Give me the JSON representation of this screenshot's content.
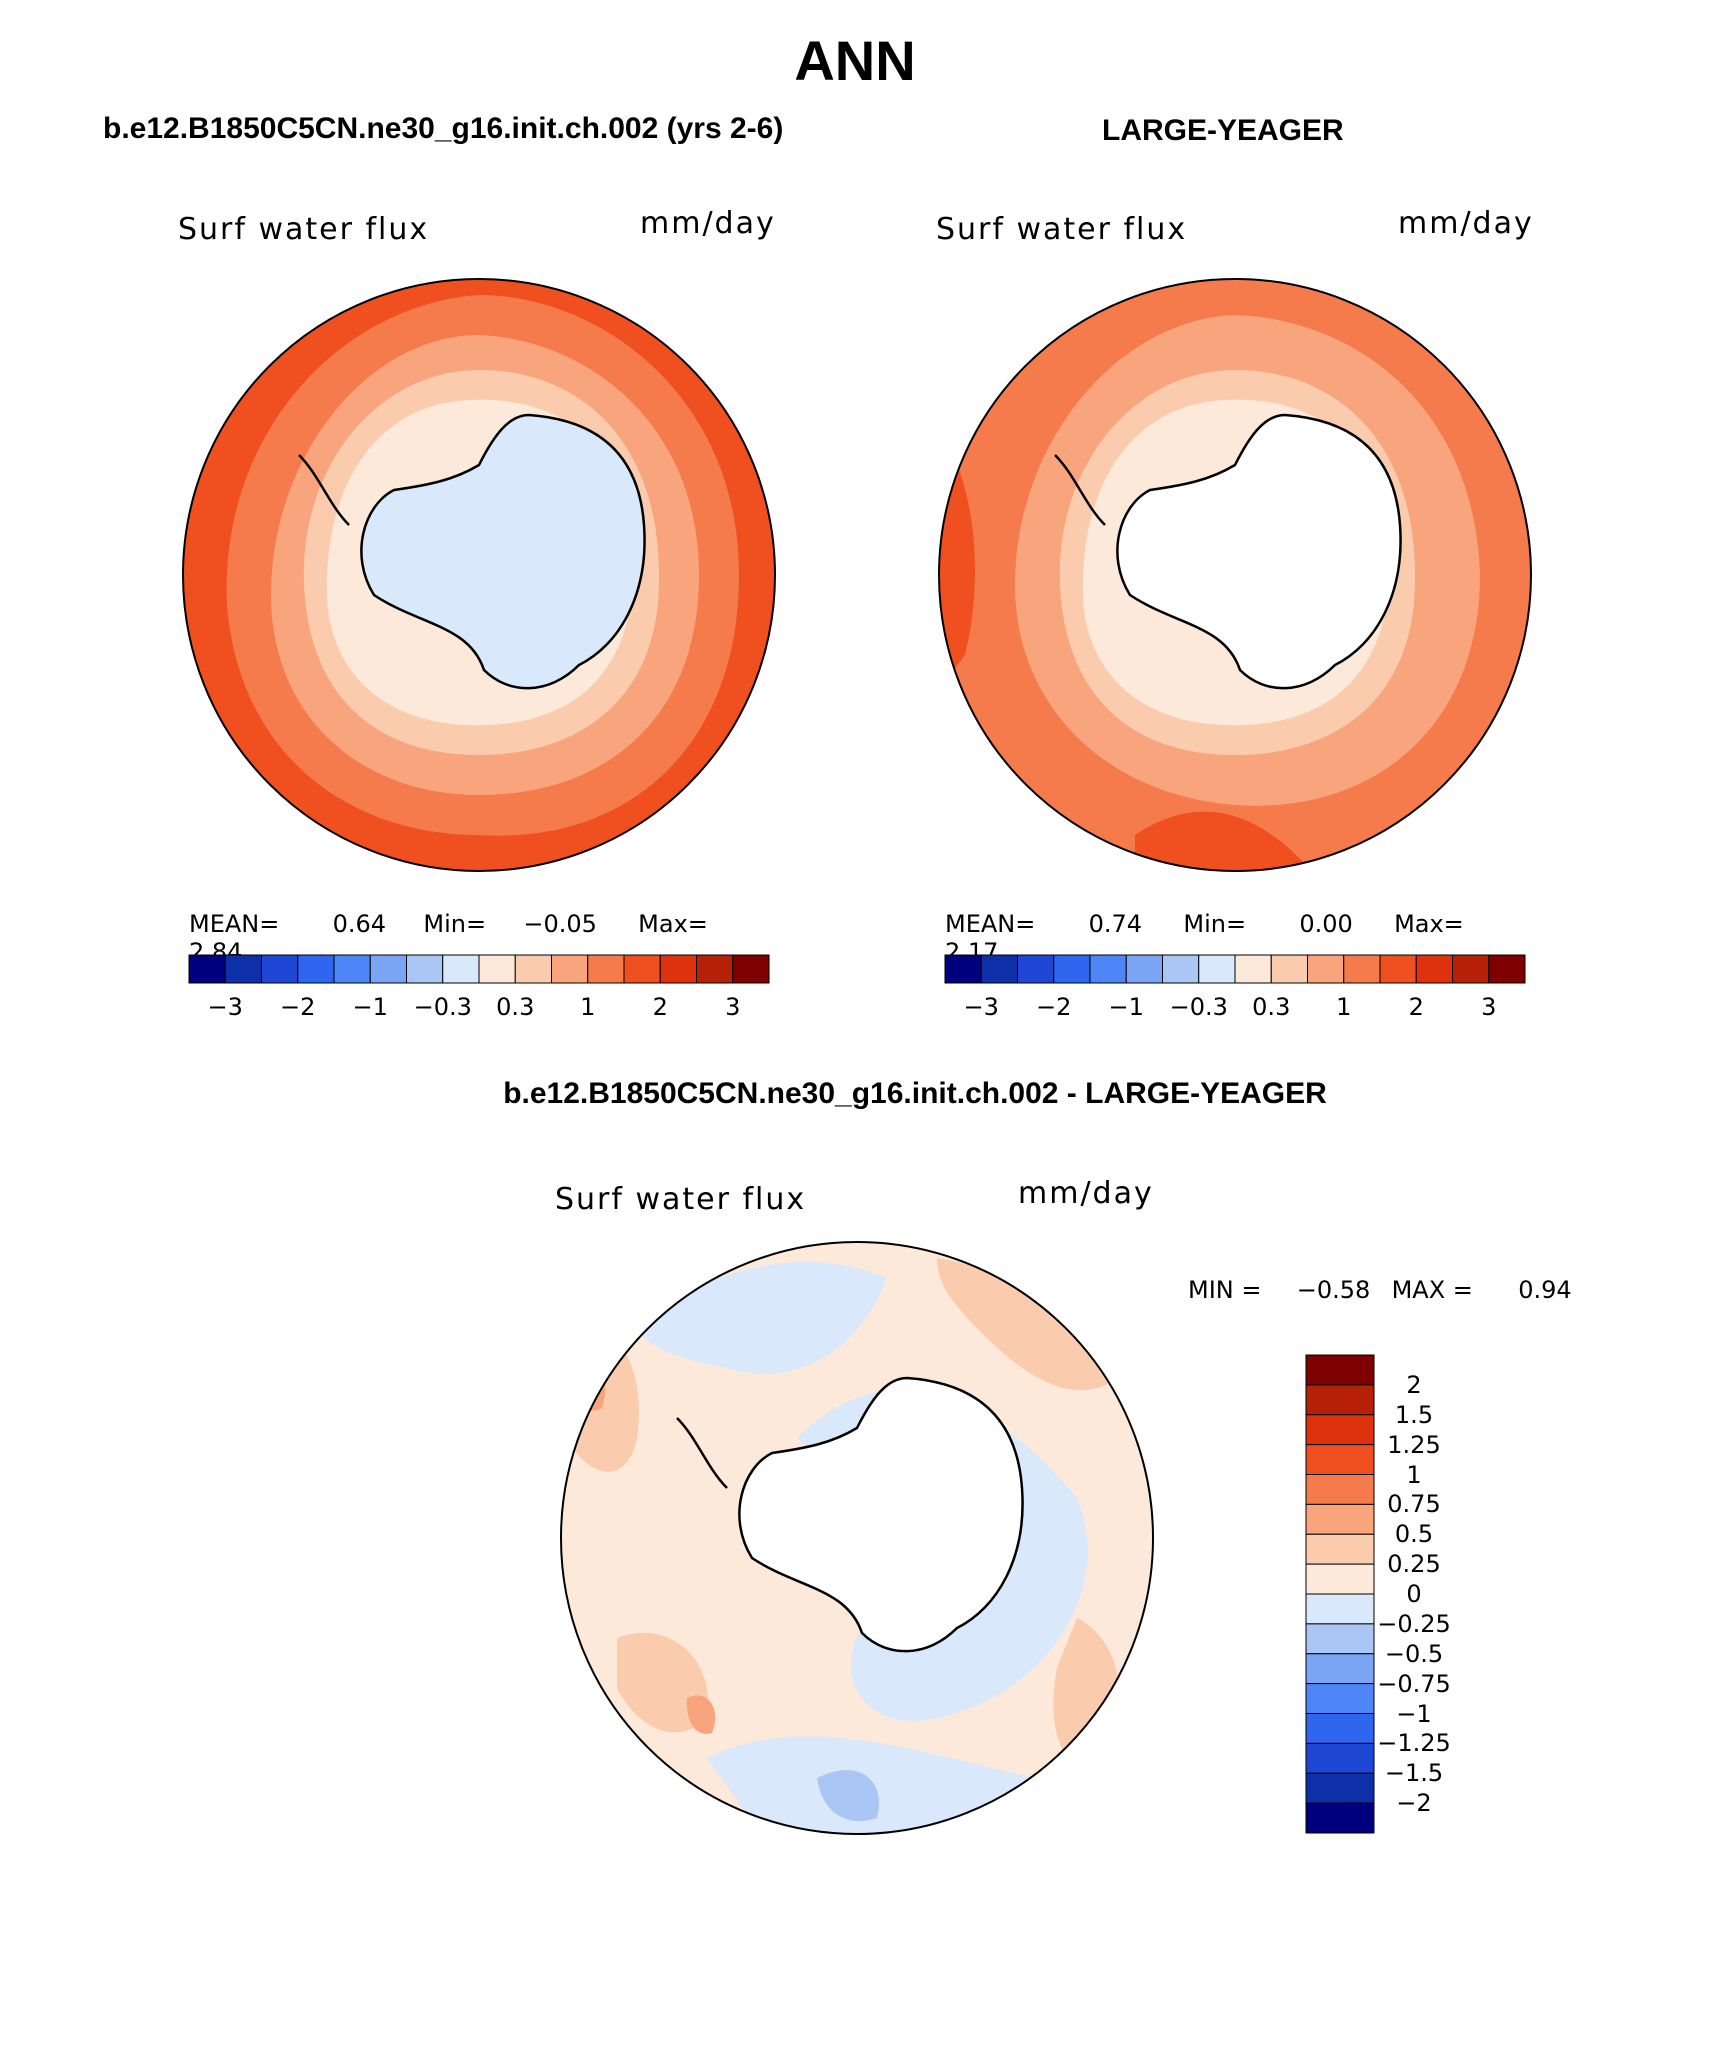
{
  "title": "ANN",
  "panels": [
    {
      "case_title": "b.e12.B1850C5CN.ne30_g16.init.ch.002 (yrs 2-6)",
      "variable": "Surf water flux",
      "units": "mm/day",
      "stats": {
        "mean_label": "MEAN=",
        "mean": "0.64",
        "min_label": "Min=",
        "min": "−0.05",
        "max_label": "Max=",
        "max": "2.84"
      }
    },
    {
      "case_title": "LARGE-YEAGER",
      "variable": "Surf water flux",
      "units": "mm/day",
      "stats": {
        "mean_label": "MEAN=",
        "mean": "0.74",
        "min_label": "Min=",
        "min": "0.00",
        "max_label": "Max=",
        "max": "2.17"
      }
    }
  ],
  "abs_colorbar": {
    "colors": [
      "#00007f",
      "#0d2fa8",
      "#1e47d6",
      "#2e66f0",
      "#4f86f7",
      "#7aa4f4",
      "#a9c6f5",
      "#d9e8fb",
      "#fde9da",
      "#fbcbad",
      "#f8a57e",
      "#f57b4d",
      "#f0501f",
      "#de320d",
      "#b52006",
      "#7f0000"
    ],
    "tick_labels": [
      "−3",
      "−2",
      "−1",
      "−0.3",
      "0.3",
      "1",
      "2",
      "3"
    ]
  },
  "diff_panel": {
    "title": "b.e12.B1850C5CN.ne30_g16.init.ch.002 - LARGE-YEAGER",
    "variable": "Surf water flux",
    "units": "mm/day",
    "min_label": "MIN =",
    "min": "−0.58",
    "max_label": "MAX =",
    "max": "0.94"
  },
  "diff_colorbar": {
    "colors_top_to_bottom": [
      "#7f0000",
      "#b52006",
      "#de320d",
      "#f0501f",
      "#f57b4d",
      "#f8a57e",
      "#fbcbad",
      "#fde9da",
      "#d9e8fb",
      "#a9c6f5",
      "#7aa4f4",
      "#4f86f7",
      "#2e66f0",
      "#1e47d6",
      "#0d2fa8",
      "#00007f"
    ],
    "tick_labels_top_to_bottom": [
      "2",
      "1.5",
      "1.25",
      "1",
      "0.75",
      "0.5",
      "0.25",
      "0",
      "−0.25",
      "−0.5",
      "−0.75",
      "−1",
      "−1.25",
      "−1.5",
      "−2"
    ]
  },
  "map_style": {
    "ocean_far": "#f0501f",
    "ocean_mid": "#f57b4d",
    "ocean_near": "#f8a57e",
    "coast_band": "#fbcbad",
    "coast_light": "#fde9da",
    "land_negative": "#d9e8fb",
    "land_mask": "#ffffff",
    "diff_base": "#fde9da",
    "diff_negative": "#d9e8fb",
    "diff_neg2": "#a9c6f5",
    "diff_pos": "#fbcbad",
    "diff_pos2": "#f8a57e"
  }
}
